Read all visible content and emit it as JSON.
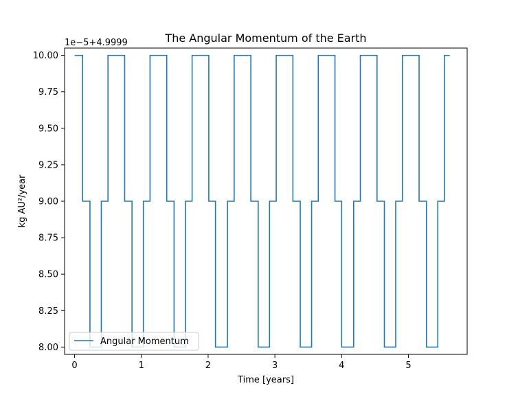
{
  "chart_data": {
    "type": "line",
    "title": "The Angular Momentum of the Earth",
    "xlabel": "Time [years]",
    "ylabel": "kg AU²/year",
    "offset_text": "1e−5+4.9999",
    "xlim": [
      -0.15,
      5.88
    ],
    "ylim": [
      7.95,
      10.05
    ],
    "x_ticks": [
      0,
      1,
      2,
      3,
      4,
      5
    ],
    "x_tick_labels": [
      "0",
      "1",
      "2",
      "3",
      "4",
      "5"
    ],
    "y_ticks": [
      8.0,
      8.25,
      8.5,
      8.75,
      9.0,
      9.25,
      9.5,
      9.75,
      10.0
    ],
    "y_tick_labels": [
      "8.00",
      "8.25",
      "8.50",
      "8.75",
      "9.00",
      "9.25",
      "9.50",
      "9.75",
      "10.00"
    ],
    "grid": false,
    "legend_position": "lower-left",
    "series": [
      {
        "name": "Angular Momentum",
        "color": "#1f77b4",
        "step": true,
        "x": [
          0,
          0.12,
          0.23,
          0.4,
          0.5,
          0.75,
          0.86,
          1.03,
          1.13,
          1.38,
          1.49,
          1.66,
          1.76,
          2.01,
          2.11,
          2.29,
          2.39,
          2.64,
          2.75,
          2.92,
          3.02,
          3.27,
          3.38,
          3.55,
          3.65,
          3.9,
          4.0,
          4.18,
          4.28,
          4.53,
          4.64,
          4.81,
          4.91,
          5.16,
          5.27,
          5.44,
          5.54,
          5.62
        ],
        "y": [
          10,
          9,
          8,
          9,
          10,
          9,
          8,
          9,
          10,
          9,
          8,
          9,
          10,
          9,
          8,
          9,
          10,
          9,
          8,
          9,
          10,
          9,
          8,
          9,
          10,
          9,
          8,
          9,
          10,
          9,
          8,
          9,
          10,
          9,
          8,
          9,
          10,
          10
        ]
      }
    ]
  }
}
